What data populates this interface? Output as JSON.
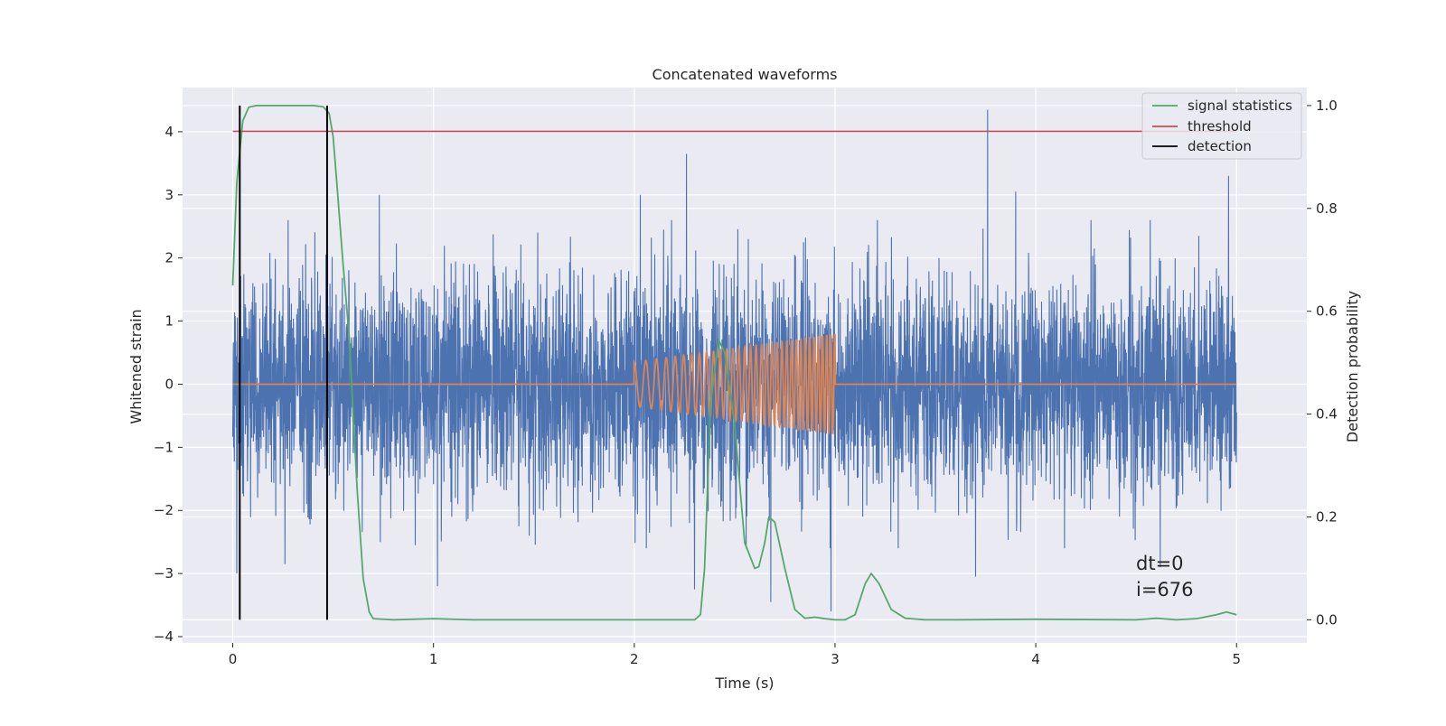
{
  "chart_data": {
    "type": "line",
    "title": "Concatenated waveforms",
    "xlabel": "Time (s)",
    "ylabel_left": "Whitened strain",
    "ylabel_right": "Detection probability",
    "xlim": [
      -0.25,
      5.35
    ],
    "ylim_left": [
      -4.1,
      4.7
    ],
    "ylim_right": [
      -0.045,
      1.035
    ],
    "x_ticks": [
      0,
      1,
      2,
      3,
      4,
      5
    ],
    "y_left_ticks": [
      -4,
      -3,
      -2,
      -1,
      0,
      1,
      2,
      3,
      4
    ],
    "y_right_ticks": [
      0.0,
      0.2,
      0.4,
      0.6,
      0.8,
      1.0
    ],
    "grid": true,
    "legend_position": "top-right",
    "legend": [
      "signal statistics",
      "threshold",
      "detection"
    ],
    "annotations": [
      "dt=0",
      "i=676"
    ],
    "colors": {
      "strain": "#4c72b0",
      "injection": "#dd8452",
      "signal_statistics": "#55a868",
      "threshold": "#c44e52",
      "detection": "#000000",
      "plot_background": "#eaeaf2",
      "grid": "#ffffff"
    },
    "series": [
      {
        "name": "strain",
        "axis": "left",
        "description_values": "whitened noise, amplitude mostly within ±2.5",
        "x_range": [
          0,
          5
        ],
        "peaks": [
          [
            0.02,
            -3.0
          ],
          [
            0.1,
            1.6
          ],
          [
            0.26,
            -2.85
          ],
          [
            0.73,
            3.0
          ],
          [
            1.02,
            -3.2
          ],
          [
            2.03,
            3.0
          ],
          [
            2.26,
            3.65
          ],
          [
            2.3,
            -3.25
          ],
          [
            2.68,
            -3.45
          ],
          [
            2.98,
            -3.6
          ],
          [
            3.76,
            4.35
          ],
          [
            3.7,
            -3.05
          ],
          [
            3.9,
            3.05
          ],
          [
            4.62,
            -2.9
          ],
          [
            4.96,
            3.3
          ]
        ]
      },
      {
        "name": "injection",
        "axis": "left",
        "x_range": [
          0,
          5
        ],
        "chirp_start": 2.0,
        "chirp_end": 3.0,
        "amp_start": 0.35,
        "amp_end": 0.8,
        "freq_start": 16,
        "freq_end": 50
      },
      {
        "name": "signal statistics",
        "axis": "right",
        "x": [
          0.0,
          0.02,
          0.05,
          0.08,
          0.12,
          0.2,
          0.3,
          0.4,
          0.45,
          0.48,
          0.5,
          0.52,
          0.55,
          0.58,
          0.6,
          0.62,
          0.65,
          0.68,
          0.7,
          0.8,
          1.0,
          1.2,
          1.6,
          2.0,
          2.3,
          2.33,
          2.35,
          2.38,
          2.42,
          2.45,
          2.5,
          2.55,
          2.6,
          2.62,
          2.65,
          2.67,
          2.7,
          2.75,
          2.8,
          2.85,
          2.9,
          2.95,
          3.0,
          3.05,
          3.1,
          3.15,
          3.18,
          3.22,
          3.28,
          3.35,
          3.45,
          3.6,
          4.0,
          4.5,
          4.6,
          4.7,
          4.8,
          4.9,
          4.95,
          5.0
        ],
        "values": [
          0.65,
          0.85,
          0.97,
          0.997,
          1.0,
          1.0,
          1.0,
          1.0,
          0.998,
          0.985,
          0.94,
          0.84,
          0.69,
          0.55,
          0.4,
          0.25,
          0.08,
          0.015,
          0.002,
          0.0,
          0.002,
          0.0,
          0.0,
          0.0,
          0.0,
          0.01,
          0.1,
          0.42,
          0.545,
          0.52,
          0.38,
          0.15,
          0.1,
          0.103,
          0.15,
          0.2,
          0.19,
          0.1,
          0.02,
          0.003,
          0.005,
          0.002,
          0.0,
          0.0,
          0.01,
          0.07,
          0.09,
          0.07,
          0.02,
          0.003,
          0.0,
          0.0,
          0.001,
          0.0,
          0.003,
          0.0,
          0.002,
          0.01,
          0.015,
          0.01
        ]
      },
      {
        "name": "threshold",
        "axis": "right",
        "x": [
          0,
          5
        ],
        "values": [
          0.95,
          0.95
        ]
      },
      {
        "name": "detection",
        "axis": "right",
        "type": "vlines",
        "x": [
          0.035,
          0.47
        ],
        "range": [
          0.0,
          1.0
        ]
      }
    ]
  }
}
